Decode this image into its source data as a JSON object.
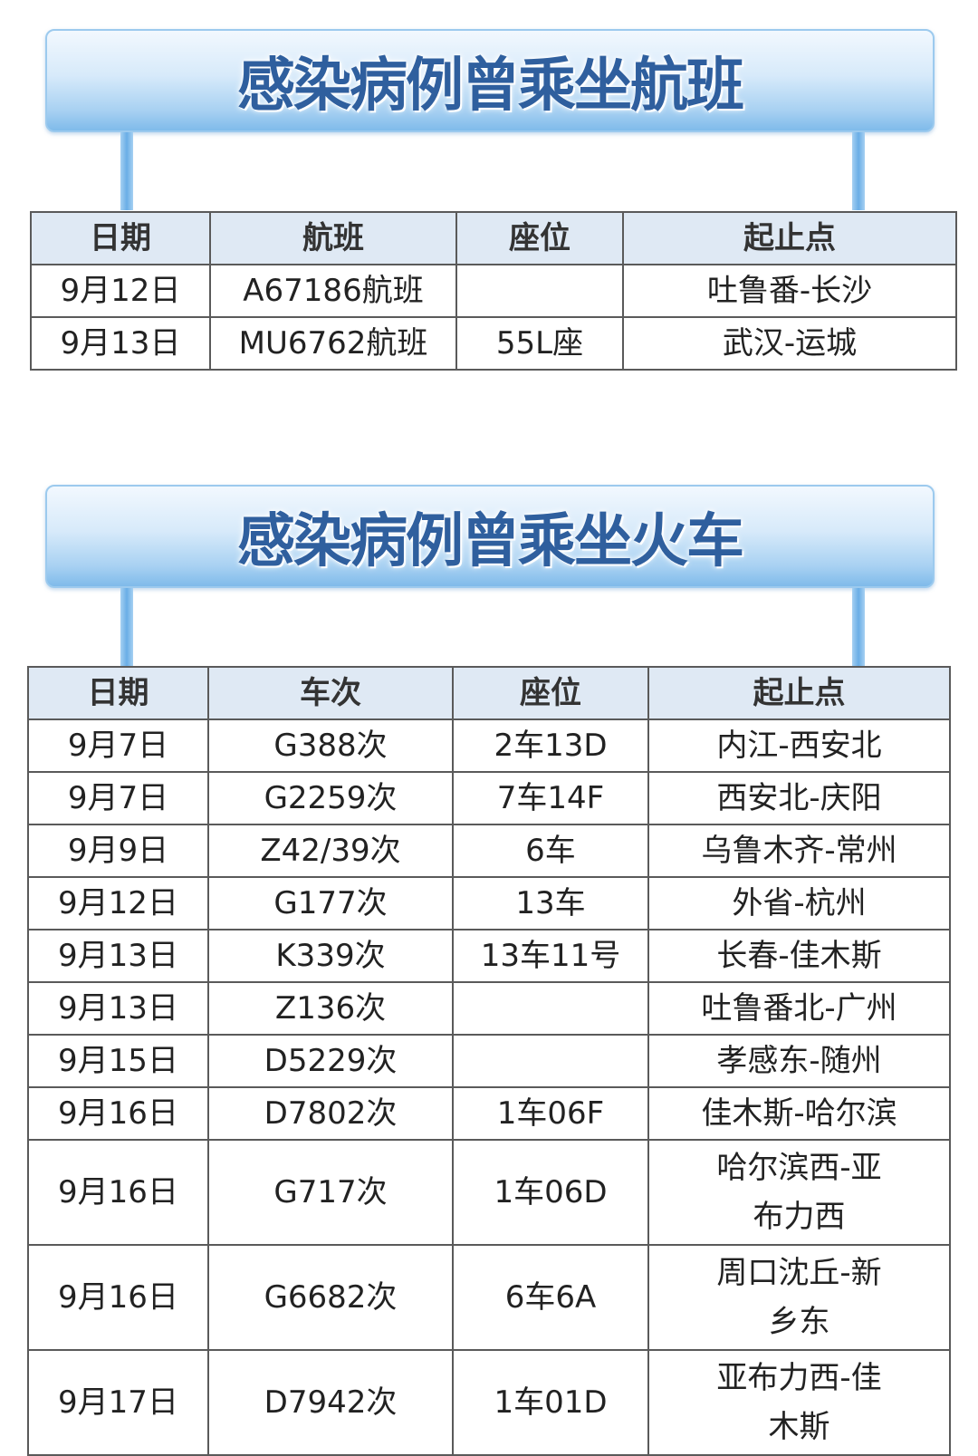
{
  "flights": {
    "title": "感染病例曾乘坐航班",
    "headers": [
      "日期",
      "航班",
      "座位",
      "起止点"
    ],
    "rows": [
      [
        "9月12日",
        "A67186航班",
        "",
        "吐鲁番-长沙"
      ],
      [
        "9月13日",
        "MU6762航班",
        "55L座",
        "武汉-运城"
      ]
    ]
  },
  "trains": {
    "title": "感染病例曾乘坐火车",
    "headers": [
      "日期",
      "车次",
      "座位",
      "起止点"
    ],
    "rows": [
      [
        "9月7日",
        "G388次",
        "2车13D",
        "内江-西安北"
      ],
      [
        "9月7日",
        "G2259次",
        "7车14F",
        "西安北-庆阳"
      ],
      [
        "9月9日",
        "Z42/39次",
        "6车",
        "乌鲁木齐-常州"
      ],
      [
        "9月12日",
        "G177次",
        "13车",
        "外省-杭州"
      ],
      [
        "9月13日",
        "K339次",
        "13车11号",
        "长春-佳木斯"
      ],
      [
        "9月13日",
        "Z136次",
        "",
        "吐鲁番北-广州"
      ],
      [
        "9月15日",
        "D5229次",
        "",
        "孝感东-随州"
      ],
      [
        "9月16日",
        "D7802次",
        "1车06F",
        "佳木斯-哈尔滨"
      ],
      [
        "9月16日",
        "G717次",
        "1车06D",
        "哈尔滨西-亚布力西"
      ],
      [
        "9月16日",
        "G6682次",
        "6车6A",
        "周口沈丘-新乡东"
      ],
      [
        "9月17日",
        "D7942次",
        "1车01D",
        "亚布力西-佳木斯"
      ]
    ]
  }
}
